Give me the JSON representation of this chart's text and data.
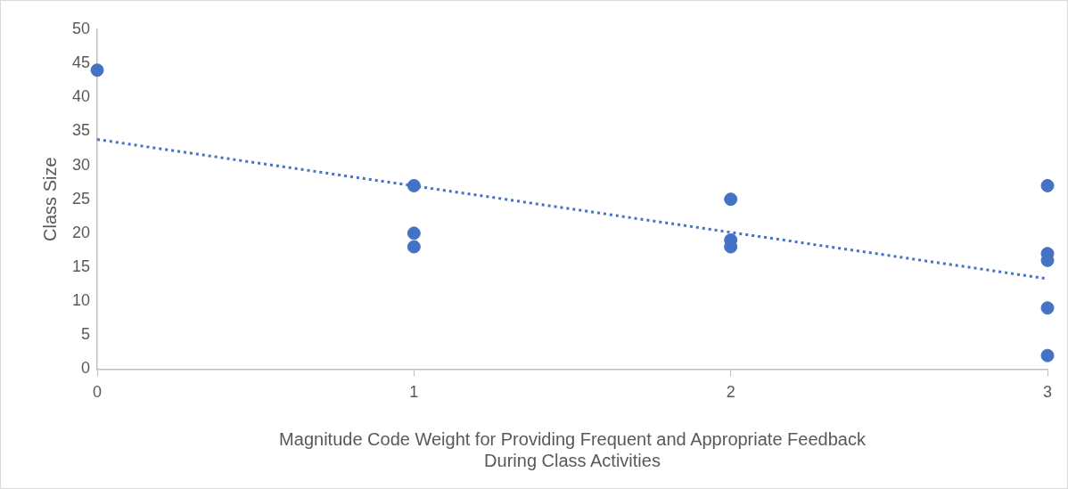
{
  "chart_data": {
    "type": "scatter",
    "xlabel": "Magnitude Code Weight for Providing Frequent and Appropriate Feedback During Class Activities",
    "ylabel": "Class Size",
    "series": [
      {
        "type": "scatter",
        "color": "#4472c4",
        "x": [
          0,
          1,
          1,
          1,
          2,
          2,
          2,
          3,
          3,
          3,
          3,
          3
        ],
        "values": [
          44,
          27,
          20,
          18,
          25,
          19,
          18,
          27,
          17,
          16,
          9,
          2
        ],
        "marker": "circle"
      },
      {
        "type": "line",
        "color": "#4472c4",
        "x": [
          0,
          3
        ],
        "values": [
          33.8,
          13.3
        ],
        "line_style": "dotted",
        "marker": "none"
      }
    ],
    "xlim": [
      0,
      3
    ],
    "xticks": [
      0,
      1,
      2,
      3
    ],
    "ylim": [
      0,
      50
    ],
    "yticks": [
      0,
      5,
      10,
      15,
      20,
      25,
      30,
      35,
      40,
      45,
      50
    ],
    "grid": false,
    "legend": false
  }
}
